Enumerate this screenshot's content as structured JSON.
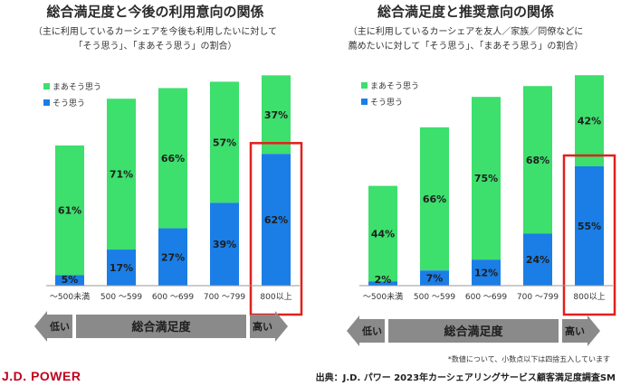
{
  "colors": {
    "soushou": "#1a7ee6",
    "maa": "#3ddf6d",
    "highlight": "#e0201c",
    "axis_bar": "#8a8a8a",
    "logo": "#c0001c"
  },
  "legend": {
    "maa_label": "まあそう思う",
    "sou_label": "そう思う"
  },
  "axis_band": {
    "label": "総合満足度",
    "low": "低い",
    "high": "高い"
  },
  "chart_data": [
    {
      "type": "bar",
      "title": "総合満足度と今後の利用意向の関係",
      "subtitle_lines": [
        "（主に利用しているカーシェアを今後も利用したいに対して",
        "「そう思う」、「まあそう思う」の割合）"
      ],
      "categories": [
        "～500未満",
        "500 ～599",
        "600 ～699",
        "700 ～799",
        "800以上"
      ],
      "series": [
        {
          "name": "そう思う",
          "values": [
            5,
            17,
            27,
            39,
            62
          ]
        },
        {
          "name": "まあそう思う",
          "values": [
            61,
            71,
            66,
            57,
            37
          ]
        }
      ],
      "labels": {
        "sou": [
          "5%",
          "17%",
          "27%",
          "39%",
          "62%"
        ],
        "maa": [
          "61%",
          "71%",
          "66%",
          "57%",
          "37%"
        ]
      },
      "highlight_index": 4,
      "ylim": [
        0,
        100
      ]
    },
    {
      "type": "bar",
      "title": "総合満足度と推奨意向の関係",
      "subtitle_lines": [
        "（主に利用しているカーシェアを友人／家族／同僚などに",
        "薦めたいに対して「そう思う」、「まあそう思う」の割合）"
      ],
      "categories": [
        "～500未満",
        "500 ～599",
        "600 ～699",
        "700 ～799",
        "800以上"
      ],
      "series": [
        {
          "name": "そう思う",
          "values": [
            2,
            7,
            12,
            24,
            55
          ]
        },
        {
          "name": "まあそう思う",
          "values": [
            44,
            66,
            75,
            68,
            42
          ]
        }
      ],
      "labels": {
        "sou": [
          "2%",
          "7%",
          "12%",
          "24%",
          "55%"
        ],
        "maa": [
          "44%",
          "66%",
          "75%",
          "68%",
          "42%"
        ]
      },
      "highlight_index": 4,
      "ylim": [
        0,
        100
      ]
    }
  ],
  "footer": {
    "note": "*数値について、小数点以下は四捨五入しています",
    "source": "出典：J.D. パワー 2023年カーシェアリングサービス顧客満足度調査SM",
    "logo": "J.D. POWER"
  }
}
